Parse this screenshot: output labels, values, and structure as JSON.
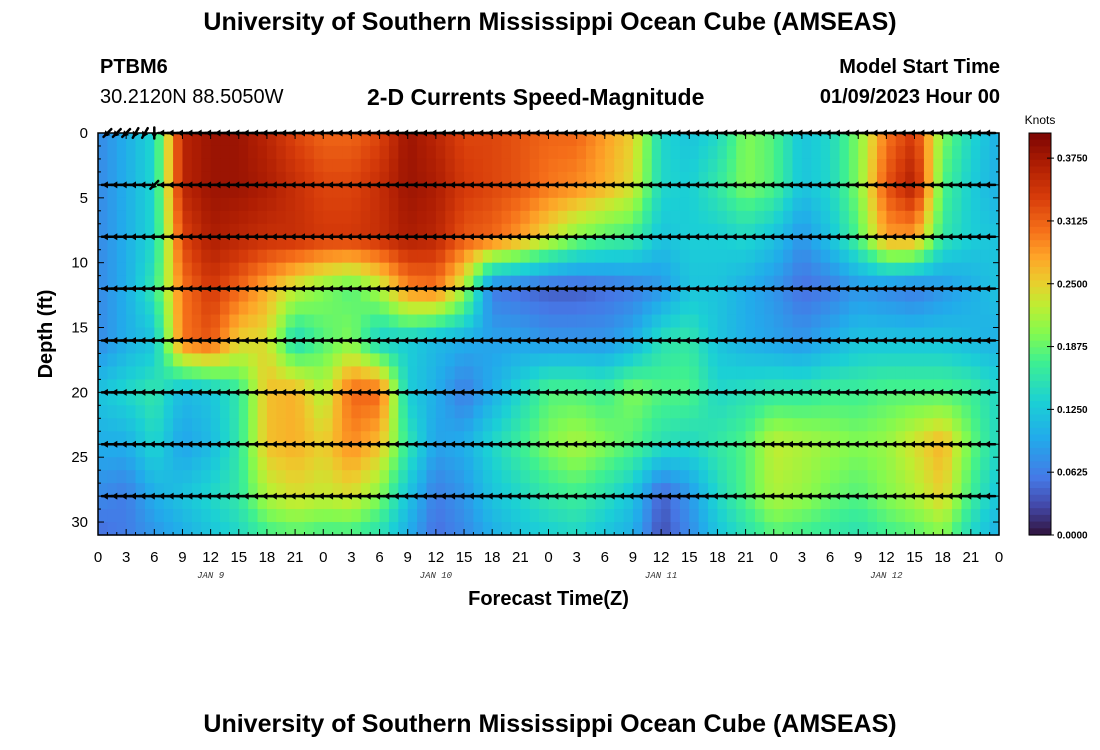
{
  "page": {
    "title": "University of Southern Mississippi Ocean Cube (AMSEAS)",
    "title_repeat": "University of Southern Mississippi Ocean Cube (AMSEAS)",
    "station_id": "PTBM6",
    "station_coords": "30.2120N  88.5050W",
    "product": "2-D Currents Speed-Magnitude",
    "model_start_label": "Model Start Time",
    "model_start_value": "01/09/2023 Hour 00"
  },
  "chart_data": {
    "type": "heatmap",
    "title": "2-D Currents Speed-Magnitude",
    "xlabel": "Forecast Time(Z)",
    "ylabel": "Depth (ft)",
    "xlim": [
      0,
      96
    ],
    "ylim": [
      0,
      31
    ],
    "y_inverted": true,
    "x_tick_values": [
      0,
      3,
      6,
      9,
      12,
      15,
      18,
      21,
      24,
      27,
      30,
      33,
      36,
      39,
      42,
      45,
      48,
      51,
      54,
      57,
      60,
      63,
      66,
      69,
      72,
      75,
      78,
      81,
      84,
      87,
      90,
      93,
      96
    ],
    "x_tick_labels": [
      "0",
      "3",
      "6",
      "9",
      "12",
      "15",
      "18",
      "21",
      "0",
      "3",
      "6",
      "9",
      "12",
      "15",
      "18",
      "21",
      "0",
      "3",
      "6",
      "9",
      "12",
      "15",
      "18",
      "21",
      "0",
      "3",
      "6",
      "9",
      "12",
      "15",
      "18",
      "21",
      "0"
    ],
    "y_tick_values": [
      0,
      5,
      10,
      15,
      20,
      25,
      30
    ],
    "y_tick_labels": [
      "0",
      "5",
      "10",
      "15",
      "20",
      "25",
      "30"
    ],
    "day_labels": [
      {
        "hour": 12,
        "label": "JAN 9"
      },
      {
        "hour": 36,
        "label": "JAN 10"
      },
      {
        "hour": 60,
        "label": "JAN 11"
      },
      {
        "hour": 84,
        "label": "JAN 12"
      }
    ],
    "colorbar": {
      "unit": "Knots",
      "min": 0.0,
      "max": 0.4,
      "tick_values": [
        0.0,
        0.0625,
        0.125,
        0.1875,
        0.25,
        0.3125,
        0.375
      ],
      "tick_labels": [
        "0.0000",
        "0.0625",
        "0.1250",
        "0.1875",
        "0.2500",
        "0.3125",
        "0.3750"
      ]
    },
    "hours": [
      0,
      3,
      6,
      9,
      12,
      15,
      18,
      21,
      24,
      27,
      30,
      33,
      36,
      39,
      42,
      45,
      48,
      51,
      54,
      57,
      60,
      63,
      66,
      69,
      72,
      75,
      78,
      81,
      84,
      87,
      90,
      93,
      96
    ],
    "depths": [
      0,
      4,
      8,
      12,
      16,
      20,
      24,
      28,
      31
    ],
    "speed_knots": [
      [
        0.07,
        0.1,
        0.14,
        0.36,
        0.38,
        0.38,
        0.36,
        0.33,
        0.31,
        0.31,
        0.33,
        0.38,
        0.36,
        0.33,
        0.33,
        0.32,
        0.31,
        0.31,
        0.28,
        0.25,
        0.14,
        0.12,
        0.14,
        0.2,
        0.18,
        0.12,
        0.14,
        0.2,
        0.3,
        0.34,
        0.2,
        0.14,
        0.1
      ],
      [
        0.07,
        0.1,
        0.14,
        0.36,
        0.38,
        0.38,
        0.37,
        0.35,
        0.33,
        0.33,
        0.35,
        0.38,
        0.37,
        0.34,
        0.33,
        0.32,
        0.3,
        0.29,
        0.27,
        0.24,
        0.14,
        0.13,
        0.16,
        0.2,
        0.18,
        0.12,
        0.14,
        0.2,
        0.32,
        0.37,
        0.18,
        0.13,
        0.1
      ],
      [
        0.07,
        0.1,
        0.14,
        0.33,
        0.37,
        0.36,
        0.35,
        0.35,
        0.34,
        0.34,
        0.35,
        0.37,
        0.36,
        0.32,
        0.31,
        0.28,
        0.24,
        0.2,
        0.18,
        0.17,
        0.12,
        0.13,
        0.13,
        0.14,
        0.12,
        0.08,
        0.12,
        0.18,
        0.28,
        0.28,
        0.16,
        0.13,
        0.12
      ],
      [
        0.07,
        0.1,
        0.16,
        0.3,
        0.34,
        0.31,
        0.27,
        0.23,
        0.2,
        0.18,
        0.22,
        0.29,
        0.3,
        0.22,
        0.06,
        0.05,
        0.04,
        0.04,
        0.05,
        0.06,
        0.08,
        0.12,
        0.12,
        0.1,
        0.08,
        0.05,
        0.06,
        0.08,
        0.07,
        0.06,
        0.08,
        0.1,
        0.12
      ],
      [
        0.07,
        0.1,
        0.12,
        0.3,
        0.32,
        0.25,
        0.24,
        0.14,
        0.18,
        0.2,
        0.13,
        0.13,
        0.11,
        0.1,
        0.09,
        0.09,
        0.08,
        0.08,
        0.08,
        0.1,
        0.15,
        0.16,
        0.12,
        0.1,
        0.09,
        0.08,
        0.1,
        0.12,
        0.12,
        0.12,
        0.12,
        0.11,
        0.1
      ],
      [
        0.12,
        0.14,
        0.16,
        0.11,
        0.12,
        0.16,
        0.26,
        0.27,
        0.22,
        0.31,
        0.31,
        0.13,
        0.1,
        0.06,
        0.1,
        0.14,
        0.18,
        0.18,
        0.17,
        0.2,
        0.18,
        0.18,
        0.14,
        0.15,
        0.16,
        0.16,
        0.17,
        0.17,
        0.18,
        0.18,
        0.18,
        0.17,
        0.14
      ],
      [
        0.1,
        0.1,
        0.14,
        0.09,
        0.11,
        0.16,
        0.26,
        0.27,
        0.25,
        0.29,
        0.26,
        0.16,
        0.09,
        0.1,
        0.14,
        0.17,
        0.2,
        0.22,
        0.2,
        0.18,
        0.15,
        0.14,
        0.16,
        0.18,
        0.23,
        0.22,
        0.21,
        0.2,
        0.21,
        0.24,
        0.27,
        0.19,
        0.14
      ],
      [
        0.07,
        0.06,
        0.1,
        0.12,
        0.14,
        0.16,
        0.22,
        0.24,
        0.23,
        0.24,
        0.2,
        0.12,
        0.06,
        0.08,
        0.12,
        0.14,
        0.16,
        0.17,
        0.15,
        0.12,
        0.04,
        0.08,
        0.14,
        0.18,
        0.22,
        0.21,
        0.19,
        0.18,
        0.2,
        0.22,
        0.25,
        0.17,
        0.12
      ],
      [
        0.05,
        0.06,
        0.08,
        0.1,
        0.12,
        0.14,
        0.17,
        0.18,
        0.17,
        0.17,
        0.15,
        0.1,
        0.05,
        0.07,
        0.1,
        0.12,
        0.13,
        0.14,
        0.12,
        0.1,
        0.03,
        0.07,
        0.12,
        0.15,
        0.18,
        0.17,
        0.16,
        0.15,
        0.17,
        0.18,
        0.2,
        0.14,
        0.1
      ]
    ],
    "arrow_depths": [
      0,
      4,
      8,
      12,
      16,
      20,
      24,
      28
    ],
    "arrow_hours": [
      1,
      2,
      3,
      4,
      5,
      6,
      7,
      8,
      9,
      10,
      11,
      12,
      13,
      14,
      15,
      16,
      17,
      18,
      19,
      20,
      21,
      22,
      23,
      24,
      25,
      26,
      27,
      28,
      29,
      30,
      31,
      32,
      33,
      34,
      35,
      36,
      37,
      38,
      39,
      40,
      41,
      42,
      43,
      44,
      45,
      46,
      47,
      48,
      49,
      50,
      51,
      52,
      53,
      54,
      55,
      56,
      57,
      58,
      59,
      60,
      61,
      62,
      63,
      64,
      65,
      66,
      67,
      68,
      69,
      70,
      71,
      72,
      73,
      74,
      75,
      76,
      77,
      78,
      79,
      80,
      81,
      82,
      83,
      84,
      85,
      86,
      87,
      88,
      89,
      90,
      91,
      92,
      93,
      94,
      95
    ],
    "arrow_directions_deg": [
      [
        225,
        225,
        225,
        210,
        210,
        180,
        270,
        270,
        270,
        270,
        270,
        270,
        270,
        270,
        270,
        270,
        270,
        270,
        270,
        270,
        270,
        270,
        270,
        270,
        270,
        270,
        270,
        270,
        270,
        270,
        270,
        270,
        270,
        270,
        270,
        270,
        270,
        270,
        270,
        270,
        270,
        270,
        270,
        270,
        270,
        270,
        270,
        270,
        270,
        270,
        270,
        270,
        270,
        270,
        270,
        270,
        270,
        270,
        270,
        270,
        270,
        270,
        270,
        270,
        270,
        270,
        270,
        270,
        270,
        270,
        270,
        270,
        270,
        270,
        270,
        270,
        270,
        270,
        270,
        270,
        270,
        270,
        270,
        270,
        270,
        270,
        270,
        270,
        270,
        270,
        270,
        270,
        270,
        270,
        270
      ],
      [
        270,
        270,
        270,
        270,
        270,
        225,
        270,
        270,
        270,
        270,
        270,
        270,
        270,
        270,
        270,
        270,
        270,
        270,
        270,
        270,
        270,
        270,
        270,
        270,
        270,
        270,
        270,
        270,
        270,
        270,
        270,
        270,
        270,
        270,
        270,
        270,
        270,
        270,
        270,
        270,
        270,
        270,
        270,
        270,
        270,
        270,
        270,
        270,
        270,
        270,
        270,
        270,
        270,
        270,
        270,
        270,
        270,
        270,
        270,
        270,
        270,
        270,
        270,
        270,
        270,
        270,
        270,
        270,
        270,
        270,
        270,
        270,
        270,
        270,
        270,
        270,
        270,
        270,
        270,
        270,
        270,
        270,
        270,
        270,
        270,
        270,
        270,
        270,
        270,
        270,
        270,
        270,
        270,
        270,
        270
      ],
      [
        270,
        270,
        270,
        270,
        270,
        270,
        270,
        270,
        270,
        270,
        270,
        270,
        270,
        270,
        270,
        270,
        270,
        270,
        270,
        270,
        270,
        270,
        270,
        270,
        270,
        270,
        270,
        270,
        270,
        270,
        270,
        270,
        270,
        270,
        270,
        270,
        270,
        270,
        270,
        270,
        270,
        270,
        270,
        270,
        270,
        270,
        270,
        270,
        270,
        270,
        270,
        270,
        270,
        270,
        270,
        270,
        270,
        270,
        270,
        270,
        270,
        270,
        270,
        270,
        270,
        270,
        270,
        270,
        270,
        270,
        270,
        270,
        270,
        270,
        270,
        270,
        270,
        270,
        270,
        270,
        270,
        270,
        270,
        270,
        270,
        270,
        270,
        270,
        270,
        270,
        270,
        270,
        270,
        270,
        270
      ],
      [
        270,
        270,
        270,
        270,
        270,
        270,
        270,
        270,
        270,
        270,
        270,
        270,
        270,
        270,
        270,
        270,
        270,
        270,
        270,
        270,
        270,
        270,
        270,
        270,
        270,
        270,
        270,
        270,
        270,
        270,
        270,
        270,
        270,
        270,
        270,
        270,
        270,
        270,
        270,
        270,
        270,
        270,
        270,
        270,
        270,
        270,
        270,
        270,
        270,
        270,
        270,
        270,
        270,
        270,
        270,
        270,
        270,
        270,
        270,
        270,
        270,
        270,
        270,
        270,
        270,
        270,
        270,
        270,
        270,
        270,
        270,
        270,
        270,
        270,
        270,
        270,
        270,
        270,
        270,
        270,
        270,
        270,
        270,
        270,
        270,
        270,
        270,
        270,
        270,
        270,
        270,
        270,
        270,
        270,
        270
      ],
      [
        270,
        270,
        270,
        270,
        270,
        270,
        270,
        270,
        270,
        270,
        270,
        270,
        270,
        270,
        270,
        270,
        270,
        270,
        270,
        270,
        270,
        270,
        270,
        270,
        270,
        270,
        270,
        270,
        270,
        270,
        270,
        270,
        270,
        270,
        270,
        270,
        270,
        270,
        270,
        270,
        270,
        270,
        270,
        270,
        270,
        270,
        270,
        270,
        270,
        270,
        270,
        270,
        270,
        270,
        270,
        270,
        270,
        270,
        270,
        270,
        270,
        270,
        270,
        270,
        270,
        270,
        270,
        270,
        270,
        270,
        270,
        270,
        270,
        270,
        270,
        270,
        270,
        270,
        270,
        270,
        270,
        270,
        270,
        270,
        270,
        270,
        270,
        270,
        270,
        270,
        270,
        270,
        270,
        270,
        270
      ],
      [
        270,
        270,
        270,
        270,
        270,
        270,
        270,
        270,
        270,
        270,
        270,
        270,
        270,
        270,
        270,
        270,
        270,
        270,
        270,
        270,
        270,
        270,
        270,
        270,
        270,
        270,
        270,
        270,
        270,
        270,
        270,
        270,
        270,
        270,
        270,
        270,
        270,
        270,
        270,
        270,
        270,
        270,
        270,
        270,
        270,
        270,
        270,
        270,
        270,
        270,
        270,
        270,
        270,
        270,
        270,
        270,
        270,
        270,
        270,
        270,
        270,
        270,
        270,
        270,
        270,
        270,
        270,
        270,
        270,
        270,
        270,
        270,
        270,
        270,
        270,
        270,
        270,
        270,
        270,
        270,
        270,
        270,
        270,
        270,
        270,
        270,
        270,
        270,
        270,
        270,
        270,
        270,
        270,
        270,
        270
      ],
      [
        270,
        270,
        270,
        270,
        270,
        270,
        270,
        270,
        270,
        270,
        270,
        270,
        270,
        270,
        270,
        270,
        270,
        270,
        270,
        270,
        270,
        270,
        270,
        270,
        270,
        270,
        270,
        270,
        270,
        270,
        270,
        270,
        270,
        270,
        270,
        270,
        270,
        270,
        270,
        270,
        270,
        270,
        270,
        270,
        270,
        270,
        270,
        270,
        270,
        270,
        270,
        270,
        270,
        270,
        270,
        270,
        270,
        270,
        270,
        270,
        270,
        270,
        270,
        270,
        270,
        270,
        270,
        270,
        270,
        270,
        270,
        270,
        270,
        270,
        270,
        270,
        270,
        270,
        270,
        270,
        270,
        270,
        270,
        270,
        270,
        270,
        270,
        270,
        270,
        270,
        270,
        270,
        270,
        270,
        270
      ],
      [
        270,
        270,
        270,
        270,
        270,
        270,
        270,
        270,
        270,
        270,
        270,
        270,
        270,
        270,
        270,
        270,
        270,
        270,
        270,
        270,
        270,
        270,
        270,
        270,
        270,
        270,
        270,
        270,
        270,
        270,
        270,
        270,
        270,
        270,
        270,
        270,
        270,
        270,
        270,
        270,
        270,
        270,
        270,
        270,
        270,
        270,
        270,
        270,
        270,
        270,
        270,
        270,
        270,
        270,
        270,
        270,
        270,
        270,
        270,
        270,
        270,
        270,
        270,
        270,
        270,
        270,
        270,
        270,
        270,
        270,
        270,
        270,
        270,
        270,
        270,
        270,
        270,
        270,
        270,
        270,
        270,
        270,
        270,
        270,
        270,
        270,
        270,
        270,
        270,
        270,
        270,
        270,
        270,
        270,
        270
      ]
    ]
  }
}
